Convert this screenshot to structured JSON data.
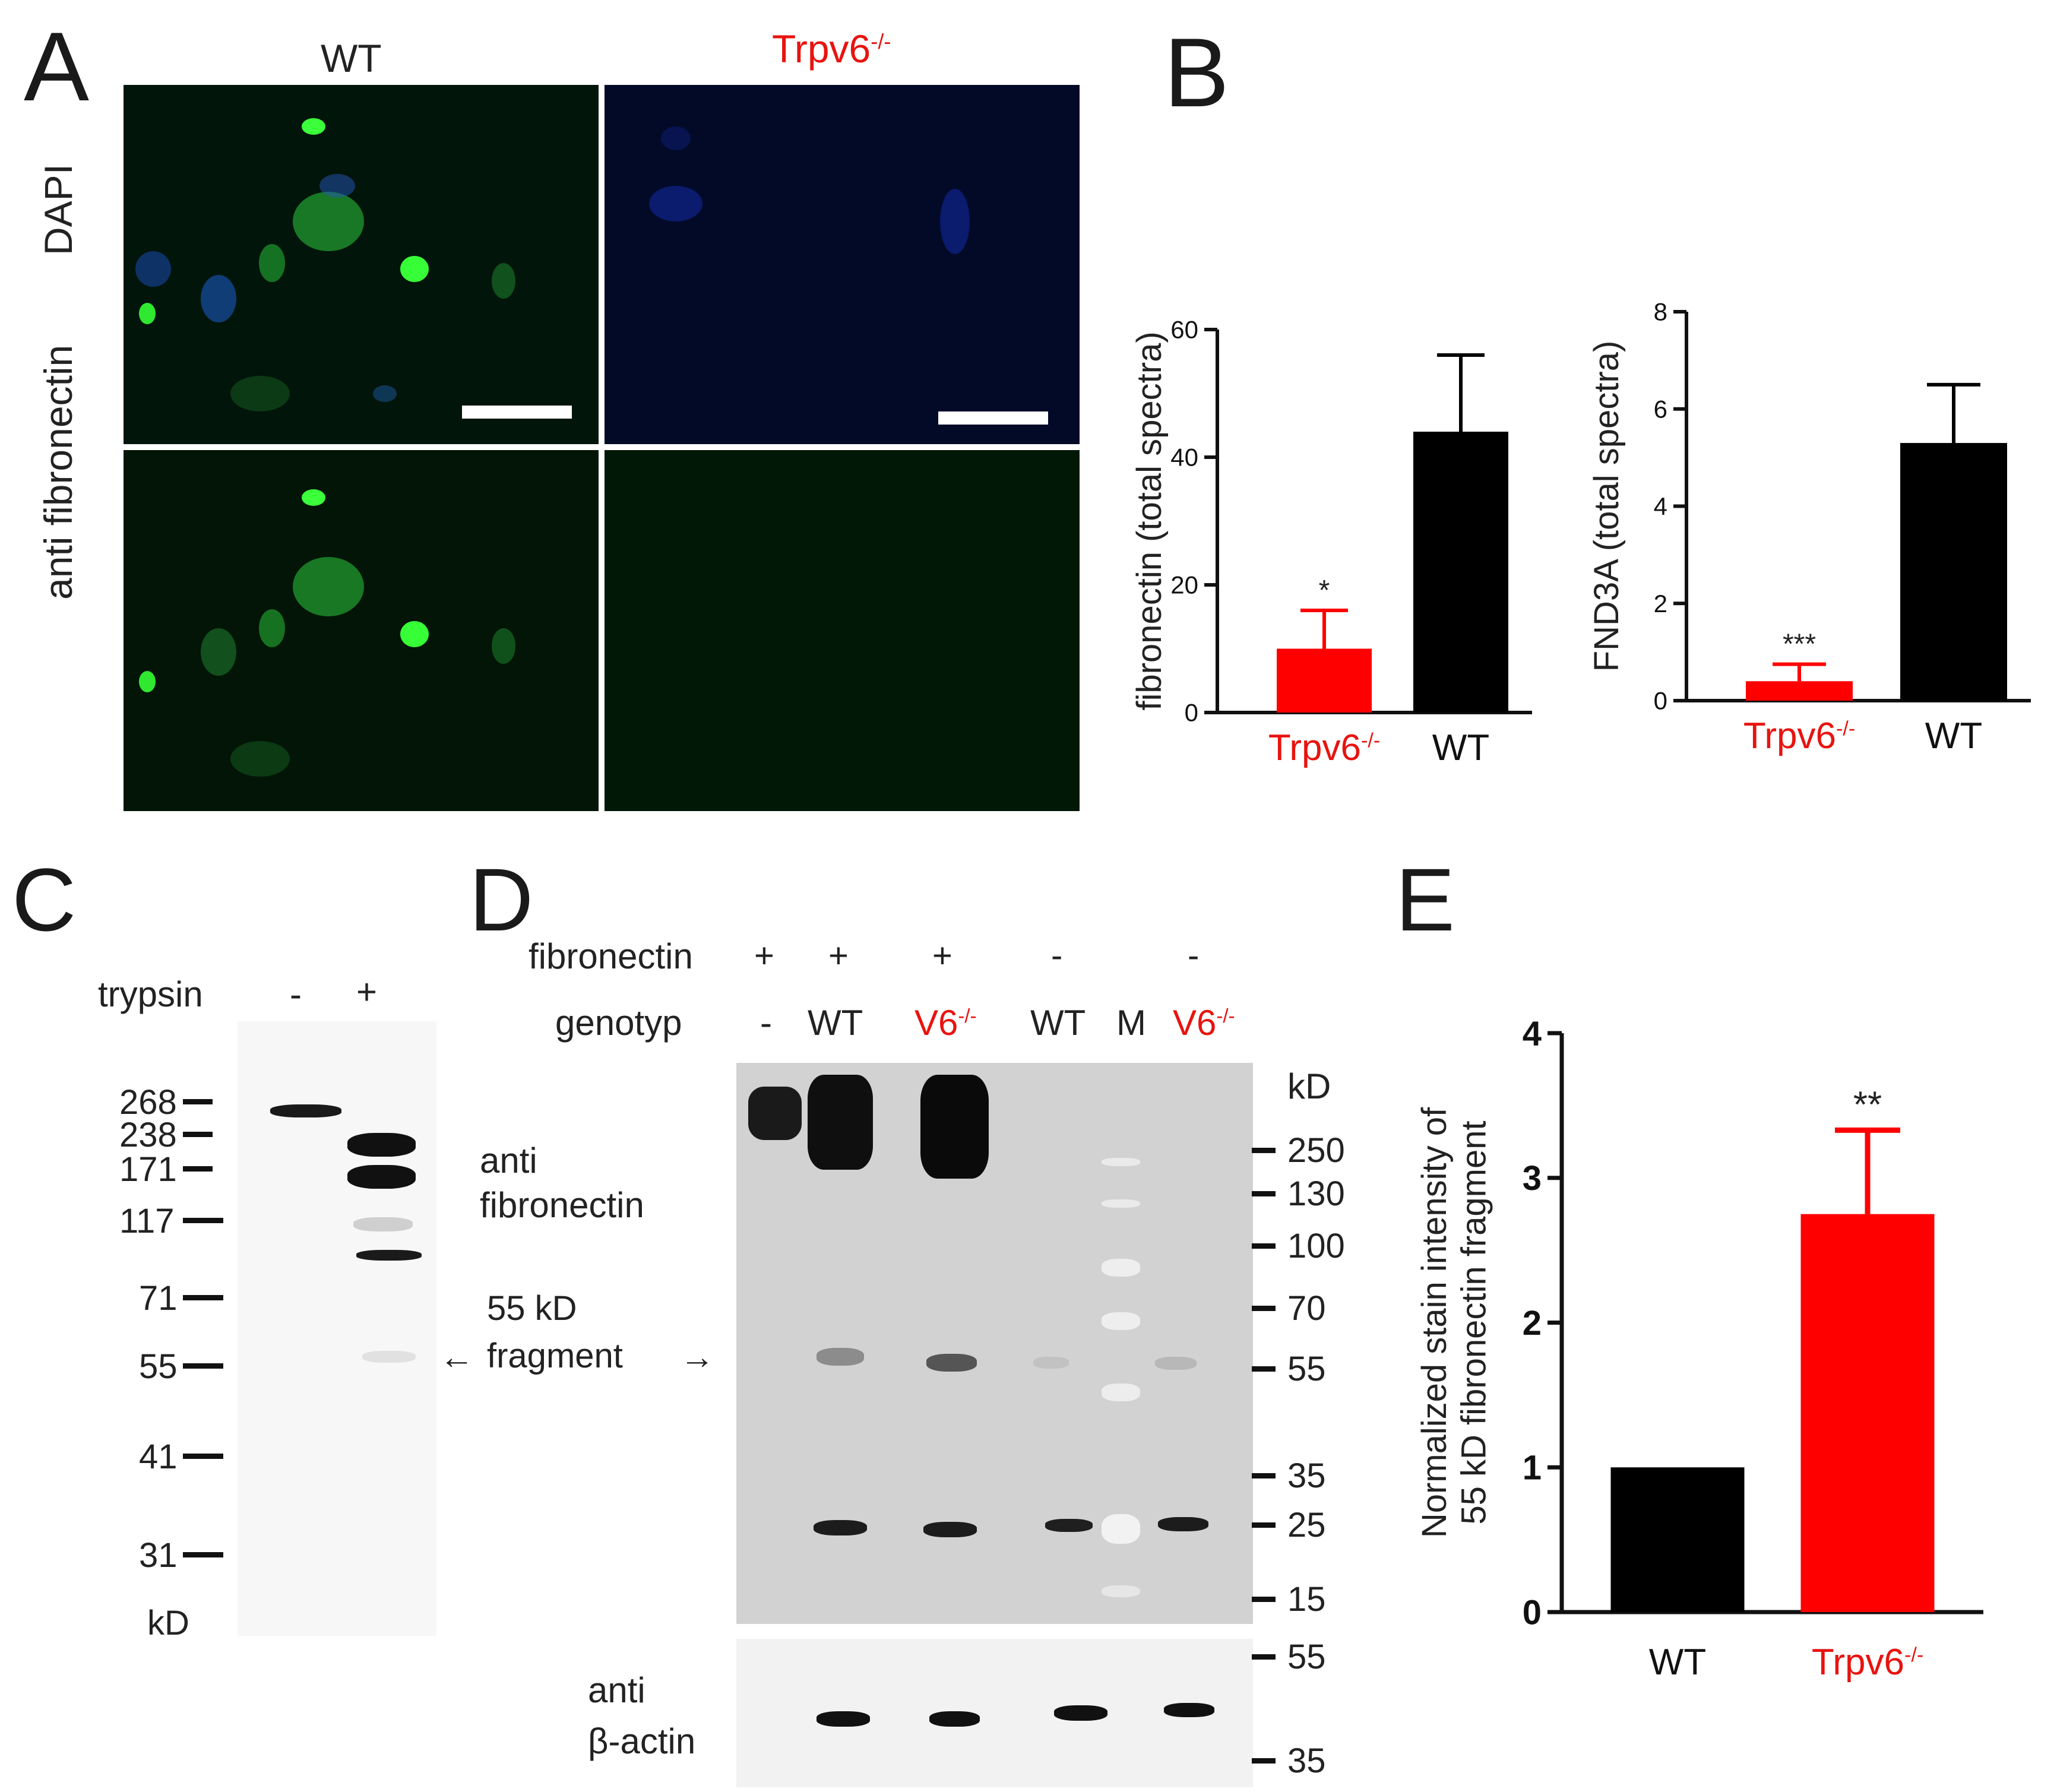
{
  "panels": {
    "A": "A",
    "B": "B",
    "C": "C",
    "D": "D",
    "E": "E"
  },
  "panelA": {
    "col_wt": "WT",
    "col_ko": "Trpv6",
    "ko_sup": "-/-",
    "row_dapi": "DAPI",
    "row_fn": "anti fibronectin"
  },
  "panelC": {
    "trypsin_label": "trypsin",
    "trypsin_minus": "-",
    "trypsin_plus": "+",
    "markers": [
      "268",
      "238",
      "171",
      "117",
      "71",
      "55",
      "41",
      "31"
    ],
    "unit": "kD",
    "anti_label_1": "anti",
    "anti_label_2": "fibronectin",
    "frag_label_1": "55 kD",
    "frag_label_2": "fragment",
    "arrow_left": "←",
    "arrow_right": "→"
  },
  "panelD": {
    "fibronectin_label": "fibronectin",
    "fibronectin_signs": [
      "+",
      "+",
      "+",
      "-",
      "-"
    ],
    "genotyp_label": "genotyp",
    "lanes": [
      "-",
      "WT",
      "V6",
      "WT",
      "M",
      "V6"
    ],
    "lane_sup": "-/-",
    "unit": "kD",
    "markers": [
      "250",
      "130",
      "100",
      "70",
      "55",
      "35",
      "25",
      "15"
    ],
    "actin_markers": [
      "55",
      "35"
    ],
    "actin_label_1": "anti",
    "actin_label_2": "β-actin"
  },
  "colors": {
    "ko": "#ff0000",
    "wt": "#000000",
    "label_red": "#e8130f"
  },
  "chart_data": [
    {
      "type": "bar",
      "panel": "B-left",
      "categories": [
        "Trpv6-/-",
        "WT"
      ],
      "values": [
        10,
        44
      ],
      "errors": [
        6,
        12
      ],
      "ylabel": "fibronectin (total spectra)",
      "ylim": [
        0,
        60
      ],
      "yticks": [
        "0",
        "20",
        "40",
        "60"
      ],
      "significance": [
        "*",
        ""
      ],
      "colors": [
        "#ff0000",
        "#000000"
      ]
    },
    {
      "type": "bar",
      "panel": "B-right",
      "categories": [
        "Trpv6-/-",
        "WT"
      ],
      "values": [
        0.4,
        5.3
      ],
      "errors": [
        0.35,
        1.2
      ],
      "ylabel": "FND3A (total spectra)",
      "ylim": [
        0,
        8
      ],
      "yticks": [
        "0",
        "2",
        "4",
        "6",
        "8"
      ],
      "significance": [
        "***",
        ""
      ],
      "colors": [
        "#ff0000",
        "#000000"
      ]
    },
    {
      "type": "bar",
      "panel": "E",
      "categories": [
        "WT",
        "Trpv6-/-"
      ],
      "values": [
        1.0,
        2.75
      ],
      "errors": [
        0,
        0.58
      ],
      "ylabel": "Normalized stain intensity of 55 kD fibronectin fragment",
      "ylim": [
        0,
        4
      ],
      "yticks": [
        "0",
        "1",
        "2",
        "3",
        "4"
      ],
      "significance": [
        "",
        "**"
      ],
      "colors": [
        "#000000",
        "#ff0000"
      ]
    }
  ]
}
